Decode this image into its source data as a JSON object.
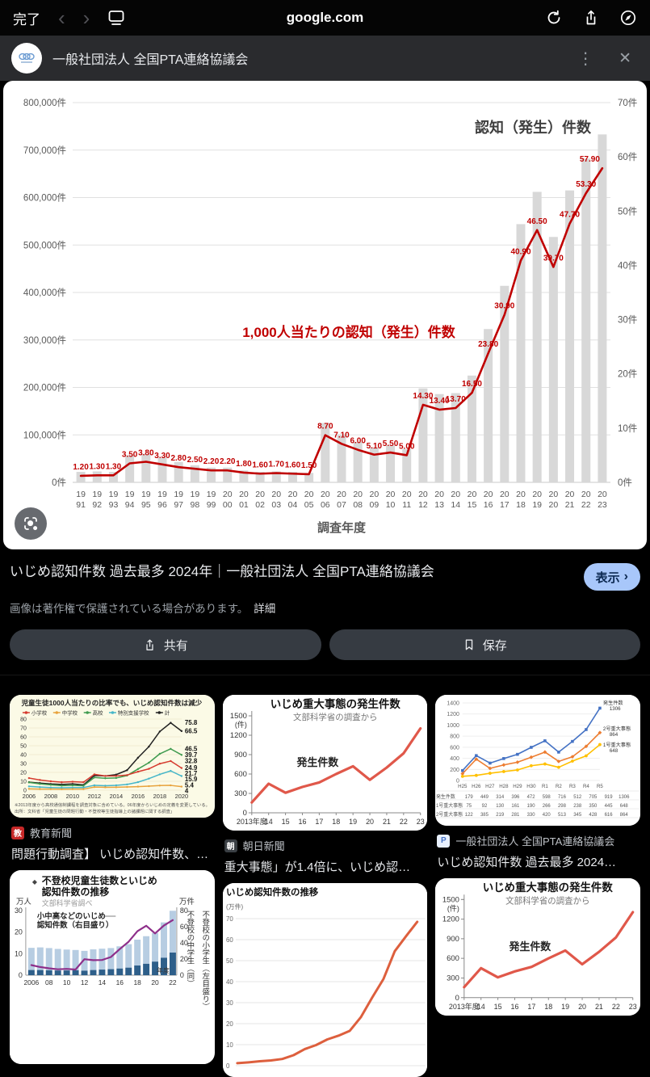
{
  "browser": {
    "done": "完了",
    "url": "google.com"
  },
  "icons": {
    "chevron_left": "‹",
    "chevron_right": "›",
    "more_vertical": "⋮",
    "close": "✕"
  },
  "header": {
    "site_name": "一般社団法人 全国PTA連絡協議会"
  },
  "result": {
    "title": "いじめ認知件数 過去最多 2024年｜一般社団法人 全国PTA連絡協議会",
    "show_label": "表示",
    "copyright": "画像は著作権で保護されている場合があります。",
    "details": "詳細",
    "share_label": "共有",
    "save_label": "保存"
  },
  "colors": {
    "accent_chip": "#a8c7fa",
    "main_line_red": "#c00000",
    "bar_gray": "#d8d8d8"
  },
  "related": {
    "cards": [
      {
        "source": "教育新聞",
        "favicon_text": "教",
        "favicon_bg": "#c62828",
        "favicon_fg": "#ffffff",
        "caption": "問題行動調査】 いじめ認知件数、…"
      },
      {
        "source": "朝日新聞",
        "favicon_text": "朝",
        "favicon_bg": "#3a3f44",
        "favicon_fg": "#ffffff",
        "caption": "重大事態」が1.4倍に、いじめ認…"
      },
      {
        "source": "一般社団法人 全国PTA連絡協議会",
        "favicon_text": "P",
        "favicon_bg": "#e8f0fe",
        "favicon_fg": "#4472c4",
        "caption": "いじめ認知件数 過去最多 2024…"
      }
    ]
  },
  "chart_data": [
    {
      "id": "main",
      "type": "bar+line",
      "title": "認知（発生）件数",
      "line_label": "1,000人当たりの認知（発生）件数",
      "xlabel": "調査年度",
      "categories": [
        "1991",
        "1992",
        "1993",
        "1994",
        "1995",
        "1996",
        "1997",
        "1998",
        "1999",
        "2000",
        "2001",
        "2002",
        "2003",
        "2004",
        "2005",
        "2006",
        "2007",
        "2008",
        "2009",
        "2010",
        "2011",
        "2012",
        "2013",
        "2014",
        "2015",
        "2016",
        "2017",
        "2018",
        "2019",
        "2020",
        "2021",
        "2022",
        "2023"
      ],
      "bars_name": "認知（発生）件数（左軸）",
      "bar_values": [
        22000,
        23000,
        22000,
        57000,
        60000,
        52000,
        43000,
        36000,
        31000,
        31000,
        25000,
        22000,
        23000,
        22000,
        20000,
        125000,
        101000,
        85000,
        73000,
        78000,
        70000,
        198000,
        186000,
        188000,
        225000,
        323000,
        414000,
        544000,
        612000,
        517000,
        615000,
        682000,
        733000
      ],
      "line_name": "1,000人当たりの認知（発生）件数（右軸）",
      "line_values": [
        1.2,
        1.3,
        1.3,
        3.5,
        3.8,
        3.3,
        2.8,
        2.5,
        2.2,
        2.2,
        1.8,
        1.6,
        1.7,
        1.6,
        1.5,
        8.7,
        7.1,
        6.0,
        5.1,
        5.5,
        5.0,
        14.3,
        13.4,
        13.7,
        16.5,
        23.8,
        30.9,
        40.9,
        46.5,
        39.7,
        47.7,
        53.3,
        57.9
      ],
      "left_axis": {
        "max": 800000,
        "step": 100000,
        "suffix": "件"
      },
      "right_axis": {
        "max": 70,
        "step": 10,
        "suffix": "件"
      },
      "grid": true,
      "legend_position": "none"
    },
    {
      "id": "thumb1",
      "type": "line",
      "title": "児童生徒1000人当たりの比率でも、いじめ認知件数は減少",
      "x": [
        2006,
        2007,
        2008,
        2009,
        2010,
        2011,
        2012,
        2013,
        2014,
        2015,
        2016,
        2017,
        2018,
        2019,
        2020
      ],
      "x_tick_labels": [
        "2006",
        "2008",
        "2010",
        "2012",
        "2014",
        "2016",
        "2018",
        "2020"
      ],
      "ylim": [
        0,
        80
      ],
      "ystep": 10,
      "legend": [
        {
          "label": "小学校",
          "color": "#d63b2f"
        },
        {
          "label": "中学校",
          "color": "#e8a33d"
        },
        {
          "label": "高校",
          "color": "#3f9b4f"
        },
        {
          "label": "特別支援学校",
          "color": "#45b6c9"
        },
        {
          "label": "計",
          "color": "#222222"
        }
      ],
      "series": [
        {
          "name": "小学校",
          "color": "#222222",
          "values": [
            9,
            8,
            7,
            6.5,
            7,
            6,
            16.5,
            16,
            17.5,
            22.5,
            36.5,
            49,
            66,
            75.8,
            66.5
          ]
        },
        {
          "name": "計",
          "color": "#3f9b4f",
          "values": [
            8.7,
            7.1,
            6.0,
            5.1,
            5.5,
            5.0,
            14.3,
            13.4,
            13.7,
            16.5,
            23.8,
            30.9,
            40.9,
            46.5,
            39.7
          ]
        },
        {
          "name": "中学校",
          "color": "#d63b2f",
          "values": [
            13.6,
            11.5,
            10,
            9,
            9.5,
            9,
            17.8,
            16,
            16,
            17,
            20.8,
            24,
            29.8,
            32.8,
            24.9
          ]
        },
        {
          "name": "特別支援学校",
          "color": "#45b6c9",
          "values": [
            4.3,
            3.5,
            3,
            2.7,
            3,
            3,
            5.5,
            5,
            5.5,
            6.5,
            9,
            13,
            17.8,
            21.7,
            15.9
          ]
        },
        {
          "name": "高校",
          "color": "#e8a33d",
          "values": [
            1.5,
            1.3,
            1.2,
            1.1,
            1.3,
            1.2,
            3.5,
            3.2,
            3.3,
            3.6,
            4,
            4.5,
            5.2,
            5.4,
            4.0
          ]
        }
      ],
      "end_labels": [
        {
          "text": "75.8",
          "v": 75.8
        },
        {
          "text": "66.5",
          "v": 66.5
        },
        {
          "text": "46.5",
          "v": 46.5
        },
        {
          "text": "39.7",
          "v": 39.7
        },
        {
          "text": "32.8",
          "v": 32.8
        },
        {
          "text": "24.9",
          "v": 24.9
        },
        {
          "text": "21.7",
          "v": 21.7
        },
        {
          "text": "15.9",
          "v": 15.9
        },
        {
          "text": "5.4",
          "v": 5.4
        },
        {
          "text": "4",
          "v": 4
        }
      ],
      "footnote1": "※2013年度から高校通信制課程を調査対象に含めている。06年度からいじめの定義を変更している。",
      "footnote2": "出所：文科省「児童生徒の問題行動・不登校等生徒指導上の諸課題に関する調査」"
    },
    {
      "id": "asahi",
      "type": "line",
      "title": "いじめ重大事態の発生件数",
      "subtitle": "文部科学省の調査から",
      "annotation": "発生件数",
      "x": [
        "2013年度",
        "14",
        "15",
        "16",
        "17",
        "18",
        "19",
        "20",
        "21",
        "22",
        "23"
      ],
      "values": [
        160,
        450,
        310,
        400,
        470,
        600,
        720,
        510,
        700,
        920,
        1306
      ],
      "ylim": [
        0,
        1500
      ],
      "ystep": 300,
      "yunit": "(件)",
      "color": "#e0584a"
    },
    {
      "id": "pta",
      "type": "line+table",
      "x": [
        "H25",
        "H26",
        "H27",
        "H28",
        "H29",
        "H30",
        "R1",
        "R2",
        "R3",
        "R4",
        "R5"
      ],
      "ylim": [
        0,
        1400
      ],
      "ystep": 200,
      "series": [
        {
          "name": "発生件数",
          "color": "#4472c4",
          "marker": "square",
          "end_name": "発生件数",
          "end_value": "1306",
          "values": [
            179,
            449,
            314,
            396,
            472,
            598,
            716,
            512,
            705,
            919,
            1306
          ]
        },
        {
          "name": "2号重大事態",
          "color": "#ed7d31",
          "marker": "diamond",
          "end_name": "2号重大事態",
          "end_value": "864",
          "values": [
            122,
            385,
            219,
            281,
            330,
            420,
            513,
            345,
            428,
            616,
            864
          ]
        },
        {
          "name": "1号重大事態",
          "color": "#ffc000",
          "marker": "circle",
          "end_name": "1号重大事態",
          "end_value": "648",
          "values": [
            75,
            92,
            130,
            161,
            190,
            266,
            298,
            238,
            350,
            445,
            648
          ]
        }
      ],
      "table": {
        "rows": [
          {
            "label": "発生件数",
            "cells": [
              179,
              449,
              314,
              396,
              472,
              598,
              716,
              512,
              705,
              919,
              1306
            ]
          },
          {
            "label": "1号重大事態",
            "cells": [
              75,
              92,
              130,
              161,
              190,
              266,
              298,
              238,
              350,
              445,
              648
            ]
          },
          {
            "label": "2号重大事態",
            "cells": [
              122,
              385,
              219,
              281,
              330,
              420,
              513,
              345,
              428,
              616,
              864
            ]
          }
        ]
      }
    },
    {
      "id": "futoko",
      "type": "bar+line",
      "title1": "不登校児童生徒数といじめ",
      "title2": "認知件数の推移",
      "subtitle": "文部科学省調べ",
      "annotation1": "小中高などのいじめ",
      "annotation2": "認知件数（右目盛り）",
      "left_unit": "万人",
      "right_unit": "万件",
      "left_ticks": [
        30,
        20,
        10,
        0
      ],
      "right_ticks": [
        80,
        60,
        40,
        20,
        0
      ],
      "left_max": 30,
      "right_max": 80,
      "right_label_1": "不登校の中学生（同）",
      "right_label_2": "不登校の小学生（左目盛り）",
      "x_tick_labels": [
        "2006",
        "08",
        "10",
        "12",
        "14",
        "16",
        "18",
        "20",
        "22"
      ],
      "xlabel": "年度",
      "bars_total": [
        12.7,
        12.9,
        12.6,
        12.2,
        11.9,
        11.7,
        11.3,
        12.0,
        12.3,
        12.6,
        13.4,
        14.4,
        16.5,
        18.1,
        19.6,
        24.5,
        29.9
      ],
      "bars_dark": [
        2.4,
        2.4,
        2.3,
        2.2,
        2.2,
        2.3,
        2.1,
        2.4,
        2.6,
        2.8,
        3.1,
        3.5,
        4.5,
        5.3,
        6.3,
        8.1,
        10.5
      ],
      "line": [
        12.5,
        10.1,
        8.5,
        7.3,
        7.8,
        7.0,
        19.8,
        18.6,
        18.8,
        22.5,
        32.3,
        41.4,
        54.4,
        61.2,
        51.7,
        61.5,
        68.2
      ],
      "colors": {
        "bar_light": "#b7cde2",
        "bar_dark": "#2e5f8a",
        "line": "#8e2f8a"
      }
    },
    {
      "id": "suii",
      "type": "line",
      "title": "いじめ認知件数の推移",
      "yunit": "(万件)",
      "y_ticks": [
        70,
        60,
        50,
        40,
        30,
        20,
        10,
        0
      ],
      "ylim": [
        0,
        70
      ],
      "values": [
        1.2,
        1.6,
        2.1,
        2.5,
        3.2,
        5.0,
        7.9,
        9.8,
        12.5,
        14.3,
        16.6,
        23.2,
        32.5,
        41.3,
        54.5,
        61.6,
        68.5
      ],
      "color": "#dd5f3d"
    }
  ]
}
